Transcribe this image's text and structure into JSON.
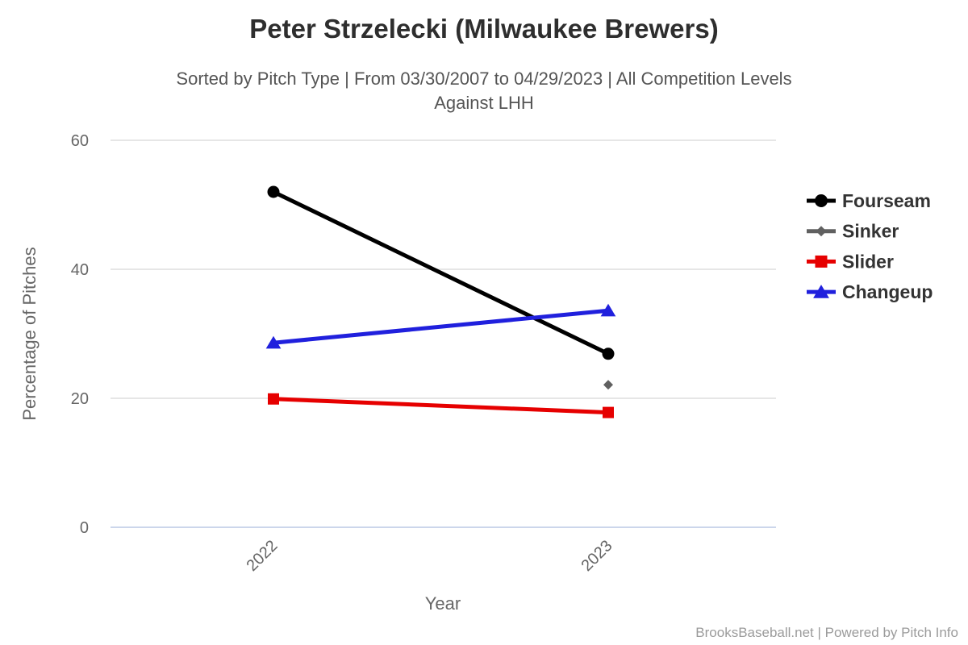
{
  "chart_data": {
    "type": "line",
    "title": "Peter Strzelecki (Milwaukee Brewers)",
    "subtitle_line1": "Sorted by Pitch Type | From 03/30/2007 to 04/29/2023 | All Competition Levels",
    "subtitle_line2": "Against LHH",
    "xlabel": "Year",
    "ylabel": "Percentage of Pitches",
    "categories": [
      "2022",
      "2023"
    ],
    "yticks": [
      0,
      20,
      40,
      60
    ],
    "ylim": [
      0,
      62
    ],
    "grid": true,
    "legend_position": "right",
    "series": [
      {
        "name": "Fourseam",
        "color": "#000000",
        "marker": "circle",
        "values": [
          52.0,
          26.9
        ]
      },
      {
        "name": "Sinker",
        "color": "#606060",
        "marker": "diamond",
        "values": [
          null,
          22.1
        ]
      },
      {
        "name": "Slider",
        "color": "#e60000",
        "marker": "square",
        "values": [
          19.9,
          17.8
        ]
      },
      {
        "name": "Changeup",
        "color": "#2020dd",
        "marker": "triangle",
        "values": [
          28.6,
          33.6
        ]
      }
    ]
  },
  "style": {
    "grid_color": "#e6e6e6",
    "axis_line_color": "#ccd6eb",
    "title_color": "#2e2e2e",
    "subtitle_color": "#555555",
    "tick_label_color": "#666666",
    "legend_text_color": "#333333",
    "footer_color": "#9b9b9b"
  },
  "footer": {
    "credit": "BrooksBaseball.net | Powered by Pitch Info"
  }
}
